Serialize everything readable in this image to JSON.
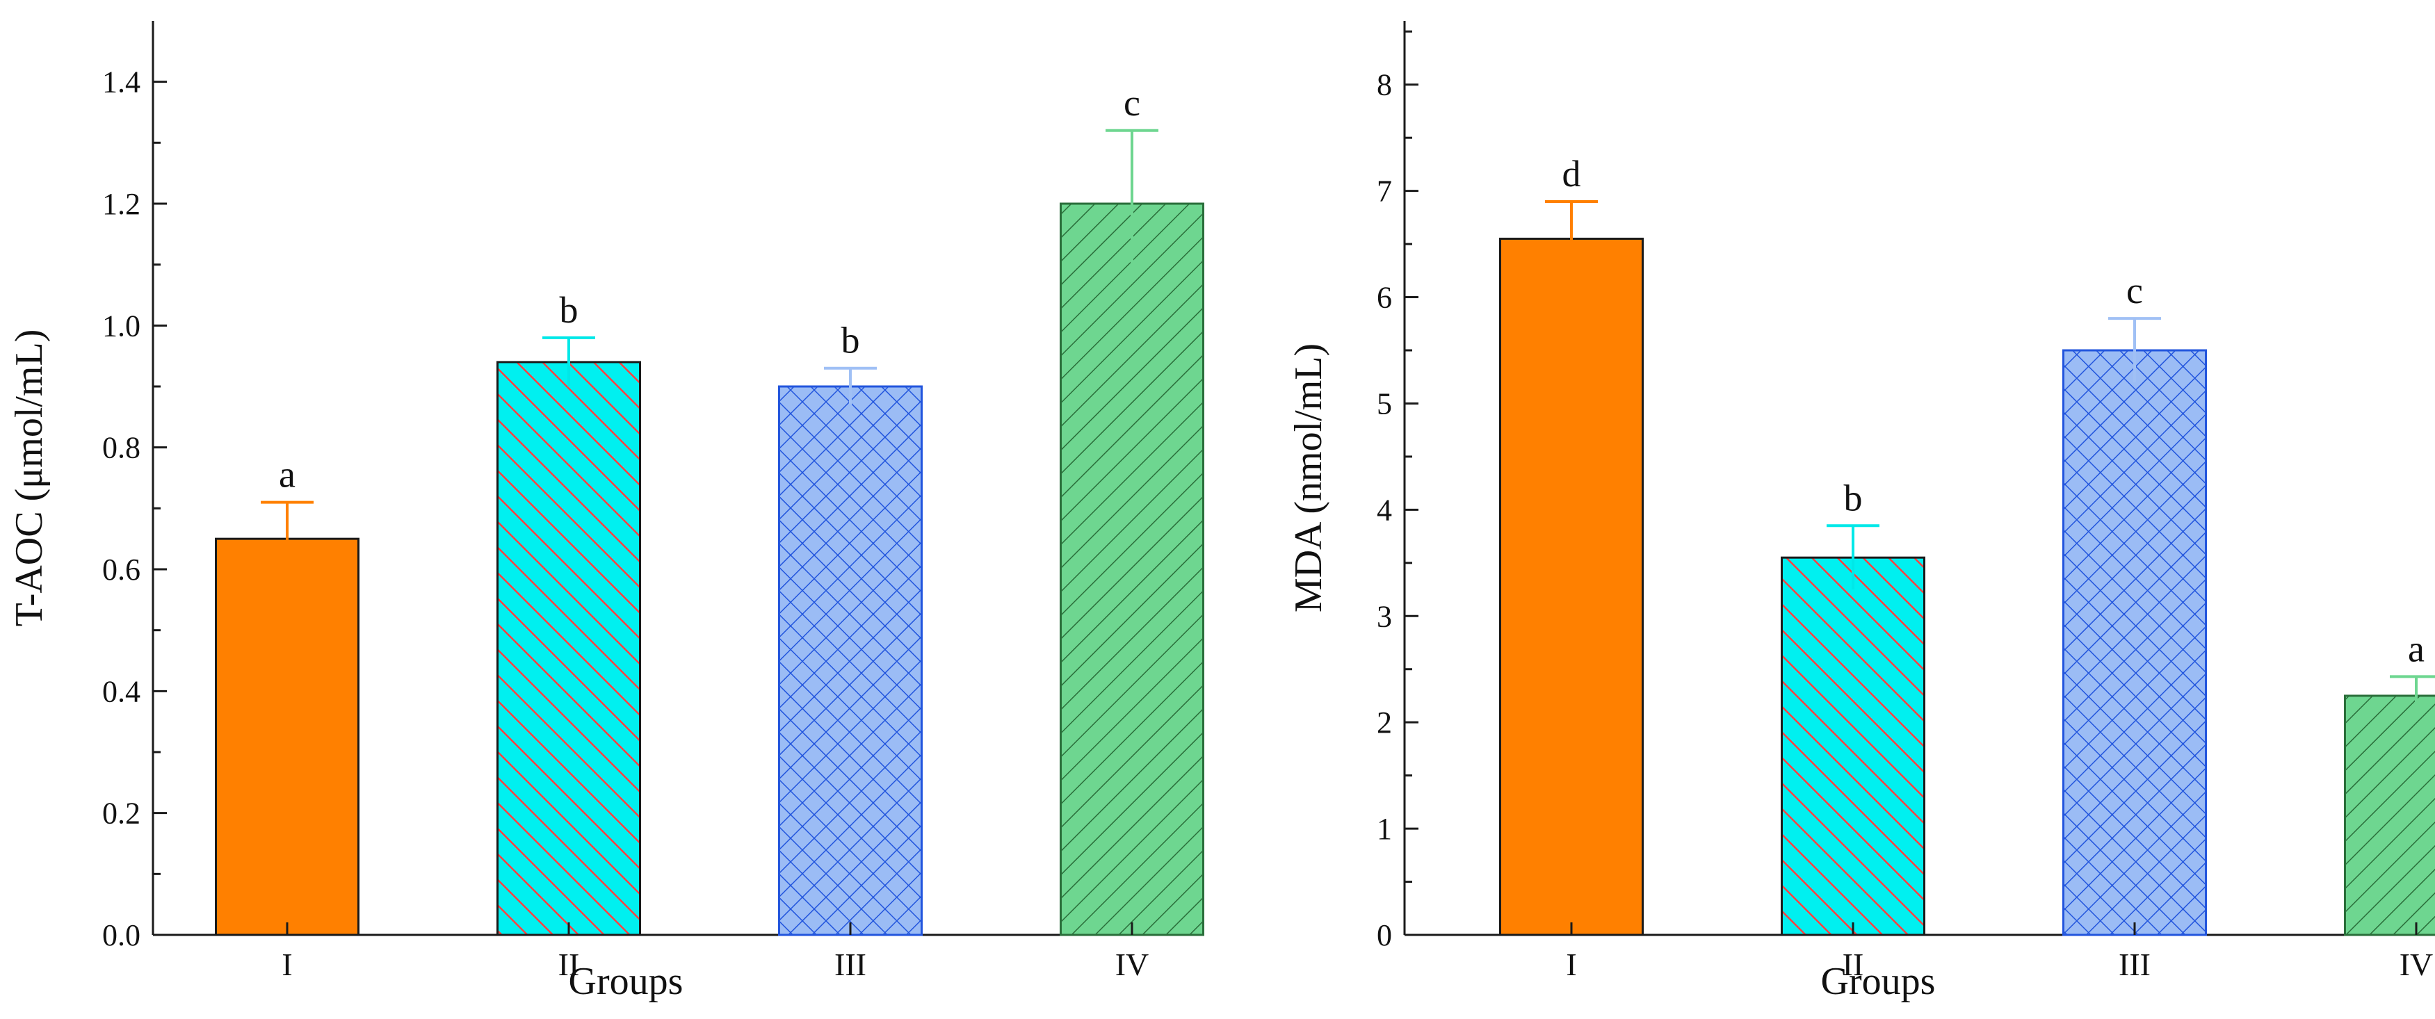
{
  "chart_data": [
    {
      "type": "bar",
      "title": "",
      "xlabel": "Groups",
      "ylabel": "T-AOC (μmol/mL)",
      "ylim": [
        0,
        1.5
      ],
      "yticks": [
        "0.0",
        "0.2",
        "0.4",
        "0.6",
        "0.8",
        "1.0",
        "1.2",
        "1.4"
      ],
      "categories": [
        "I",
        "II",
        "III",
        "IV"
      ],
      "values": [
        0.65,
        0.94,
        0.9,
        1.2
      ],
      "errors": [
        0.06,
        0.04,
        0.03,
        0.12
      ],
      "significance": [
        "a",
        "b",
        "b",
        "c"
      ]
    },
    {
      "type": "bar",
      "title": "",
      "xlabel": "Groups",
      "ylabel": "MDA (nmol/mL)",
      "ylim": [
        0,
        8.6
      ],
      "yticks": [
        "0",
        "1",
        "2",
        "3",
        "4",
        "5",
        "6",
        "7",
        "8"
      ],
      "categories": [
        "I",
        "II",
        "III",
        "IV"
      ],
      "values": [
        6.55,
        3.55,
        5.5,
        2.25
      ],
      "errors": [
        0.35,
        0.3,
        0.3,
        0.18
      ],
      "significance": [
        "d",
        "b",
        "c",
        "a"
      ]
    }
  ],
  "styles": {
    "bars": [
      {
        "fill": "#ff8000",
        "stroke": "#1a1a1a",
        "pattern": "solid",
        "hatch": "none",
        "error_color": "#ff8000"
      },
      {
        "fill": "#00f0f0",
        "stroke": "#1a1a1a",
        "pattern": "diag-back",
        "hatch": "#ff4040",
        "error_color": "#00e8e8"
      },
      {
        "fill": "#9bbcf5",
        "stroke": "#2255dd",
        "pattern": "cross",
        "hatch": "#2255dd",
        "error_color": "#a0c0f5"
      },
      {
        "fill": "#6ed690",
        "stroke": "#2a6e3a",
        "pattern": "diag-fwd",
        "hatch": "#2a6e3a",
        "error_color": "#6ed690"
      }
    ],
    "axis_color": "#1a1a1a"
  }
}
